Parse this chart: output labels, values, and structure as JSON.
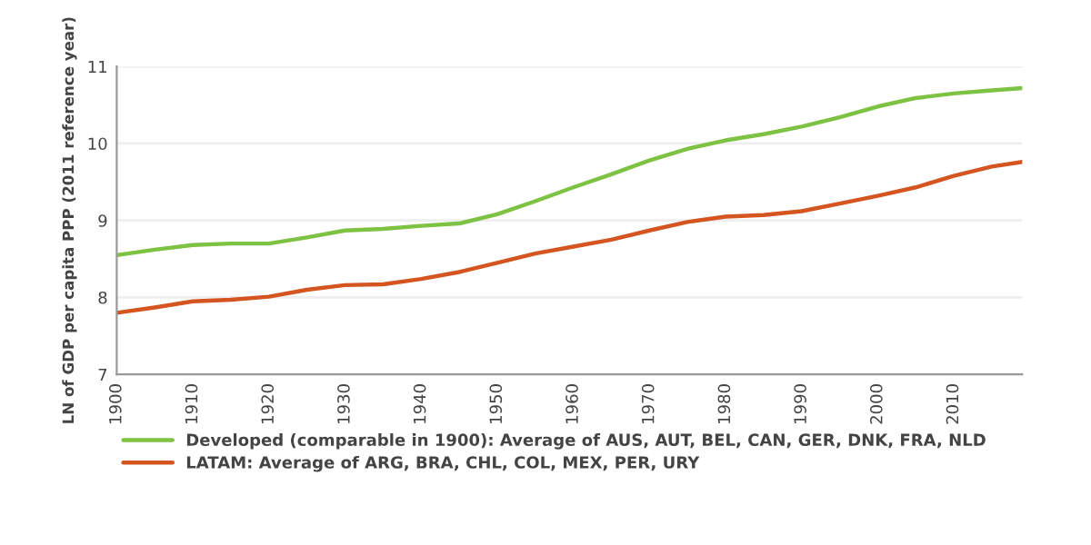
{
  "chart_data": {
    "type": "line",
    "ylabel": "LN of GDP per capita PPP (2011 reference year)",
    "x": [
      1900,
      1905,
      1910,
      1915,
      1920,
      1925,
      1930,
      1935,
      1940,
      1945,
      1950,
      1955,
      1960,
      1965,
      1970,
      1975,
      1980,
      1985,
      1990,
      1995,
      2000,
      2005,
      2010,
      2015,
      2019
    ],
    "series": [
      {
        "name": "Developed (comparable in 1900): Average of AUS, AUT, BEL, CAN, GER, DNK, FRA, NLD",
        "color": "#7dc242",
        "values": [
          8.55,
          8.62,
          8.68,
          8.7,
          8.7,
          8.78,
          8.87,
          8.89,
          8.93,
          8.96,
          9.08,
          9.25,
          9.43,
          9.6,
          9.78,
          9.93,
          10.04,
          10.12,
          10.22,
          10.34,
          10.48,
          10.59,
          10.65,
          10.69,
          10.72
        ]
      },
      {
        "name": "LATAM: Average of ARG, BRA, CHL, COL, MEX, PER, URY",
        "color": "#d4551f",
        "values": [
          7.8,
          7.87,
          7.95,
          7.97,
          8.01,
          8.1,
          8.16,
          8.17,
          8.24,
          8.33,
          8.45,
          8.57,
          8.66,
          8.75,
          8.87,
          8.98,
          9.05,
          9.07,
          9.12,
          9.22,
          9.32,
          9.43,
          9.58,
          9.7,
          9.76
        ]
      }
    ],
    "xlim": [
      1900,
      2019
    ],
    "xticks": [
      1900,
      1910,
      1920,
      1930,
      1940,
      1950,
      1960,
      1970,
      1980,
      1990,
      2000,
      2010
    ],
    "ylim": [
      7,
      11
    ],
    "yticks": [
      7,
      8,
      9,
      10,
      11
    ],
    "grid": "y",
    "legend": "bottom left",
    "line_style": "solid",
    "marker": "none"
  }
}
